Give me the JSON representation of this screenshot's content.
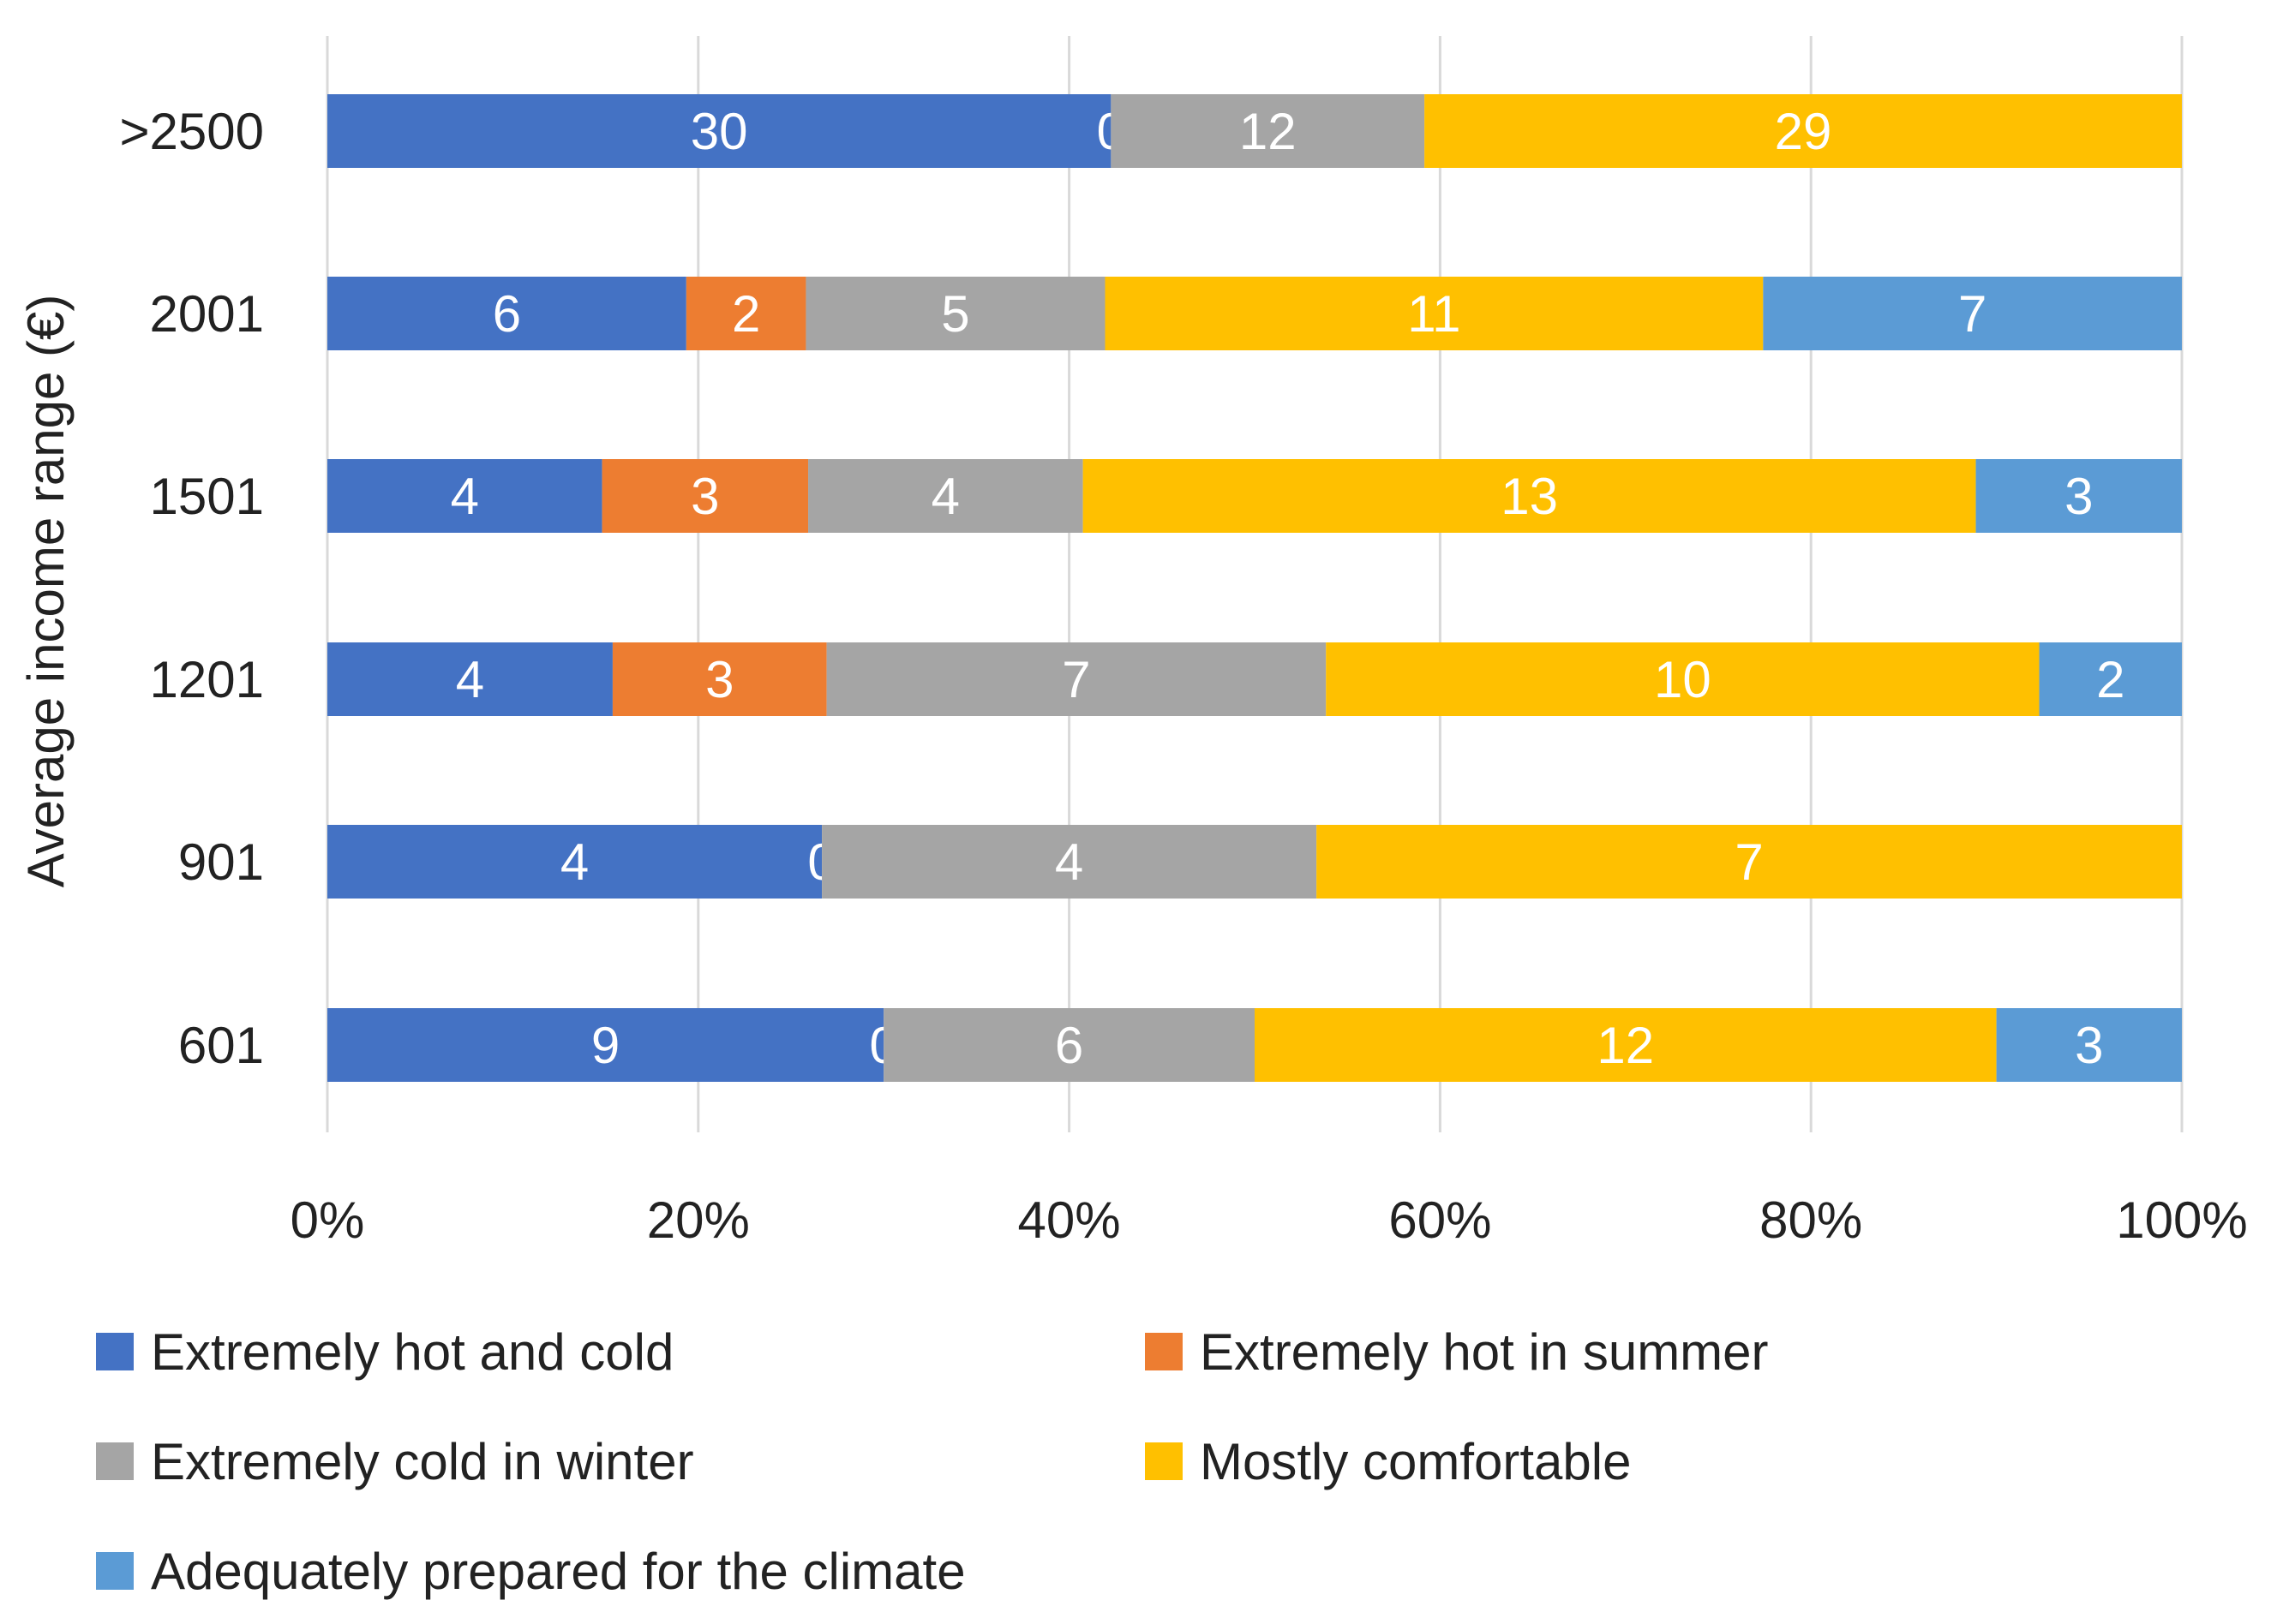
{
  "chart_data": {
    "type": "bar",
    "orientation": "horizontal",
    "stacked": "percent",
    "title": "",
    "xlabel": "",
    "ylabel": "Average income range (€)",
    "xlim": [
      0,
      100
    ],
    "xticks": [
      "0%",
      "20%",
      "40%",
      "60%",
      "80%",
      "100%"
    ],
    "grid": "vertical",
    "legend_position": "bottom",
    "categories": [
      "601",
      "901",
      "1201",
      "1501",
      "2001",
      ">2500"
    ],
    "series": [
      {
        "name": "Extremely hot and cold",
        "color": "#4472C4",
        "values": [
          9,
          4,
          4,
          4,
          6,
          30
        ]
      },
      {
        "name": "Extremely hot in summer",
        "color": "#ED7D31",
        "values": [
          0,
          0,
          3,
          3,
          2,
          0
        ]
      },
      {
        "name": "Extremely cold in winter",
        "color": "#A5A5A5",
        "values": [
          6,
          4,
          7,
          4,
          5,
          12
        ]
      },
      {
        "name": "Mostly comfortable",
        "color": "#FFC000",
        "values": [
          12,
          7,
          10,
          13,
          11,
          29
        ]
      },
      {
        "name": "Adequately prepared for the climate",
        "color": "#5B9BD5",
        "values": [
          3,
          0,
          2,
          3,
          7,
          0
        ]
      }
    ]
  }
}
